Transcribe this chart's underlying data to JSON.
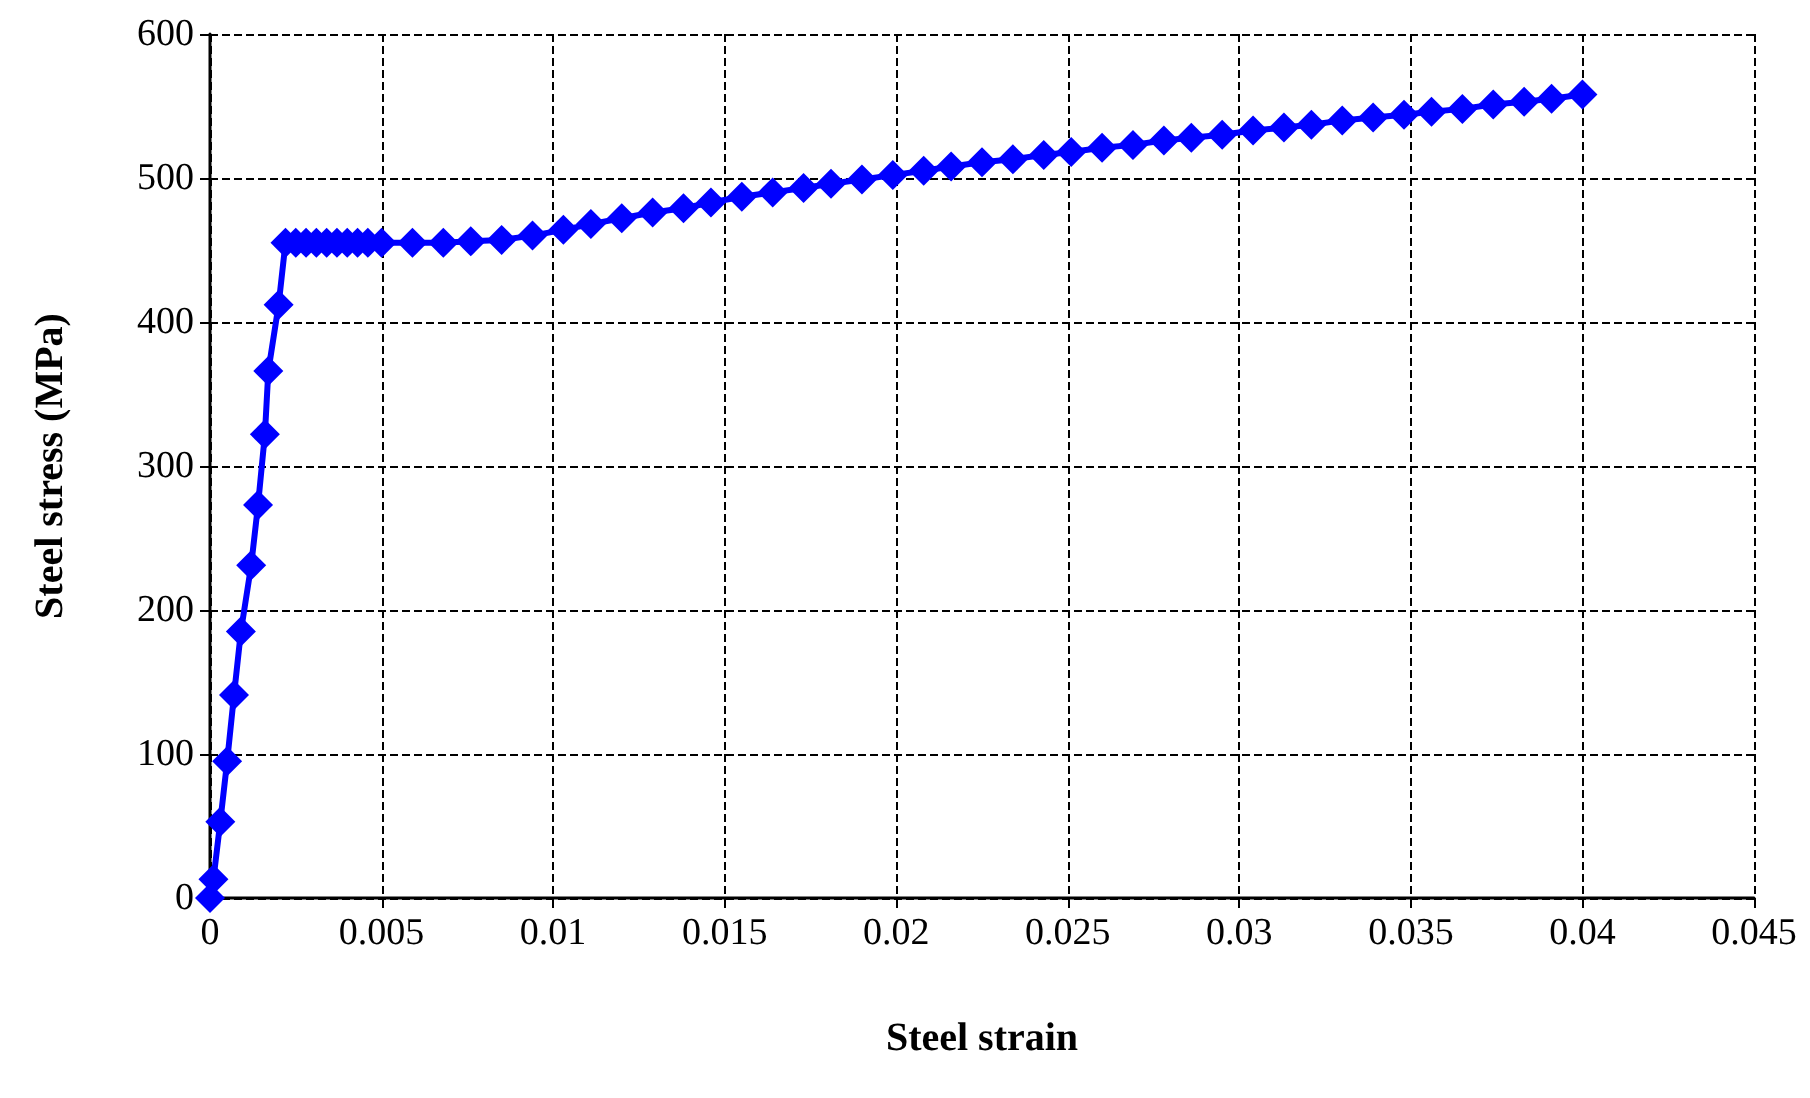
{
  "chart_data": {
    "type": "line",
    "xlabel": "Steel strain",
    "ylabel": "Steel stress (MPa)",
    "marker": "diamond",
    "line_style": "solid",
    "grid": true,
    "xlim": [
      0,
      0.045
    ],
    "xticks": [
      0,
      0.005,
      0.01,
      0.015,
      0.02,
      0.025,
      0.03,
      0.035,
      0.04,
      0.045
    ],
    "ylim": [
      0,
      600
    ],
    "yticks": [
      0,
      100,
      200,
      300,
      400,
      500,
      600
    ],
    "x": [
      0,
      0.0001,
      0.0003,
      0.0005,
      0.0007,
      0.0009,
      0.0012,
      0.0014,
      0.0016,
      0.0017,
      0.002,
      0.0022,
      0.0025,
      0.0028,
      0.0031,
      0.0034,
      0.0037,
      0.004,
      0.0043,
      0.0046,
      0.005,
      0.0059,
      0.0068,
      0.0076,
      0.0085,
      0.0094,
      0.0103,
      0.0111,
      0.012,
      0.0129,
      0.0138,
      0.0146,
      0.0155,
      0.0164,
      0.0173,
      0.0181,
      0.019,
      0.0199,
      0.0208,
      0.0216,
      0.0225,
      0.0234,
      0.0243,
      0.0251,
      0.026,
      0.0269,
      0.0278,
      0.0286,
      0.0295,
      0.0304,
      0.0313,
      0.0321,
      0.033,
      0.0339,
      0.0348,
      0.0356,
      0.0365,
      0.0374,
      0.0383,
      0.0391,
      0.04
    ],
    "series": [
      {
        "color": "#0000ff",
        "values": [
          0,
          13,
          53,
          95,
          141,
          185,
          231,
          273,
          322,
          366,
          412,
          455,
          455,
          455,
          455,
          455,
          455,
          455,
          455,
          455,
          455,
          455,
          455,
          456,
          457,
          460,
          464,
          468,
          472,
          476,
          479,
          483,
          487,
          490,
          493,
          496,
          499,
          502,
          505,
          508,
          511,
          513,
          516,
          518,
          521,
          523,
          526,
          528,
          530,
          533,
          535,
          537,
          540,
          542,
          544,
          546,
          548,
          551,
          553,
          555,
          558
        ]
      }
    ]
  }
}
